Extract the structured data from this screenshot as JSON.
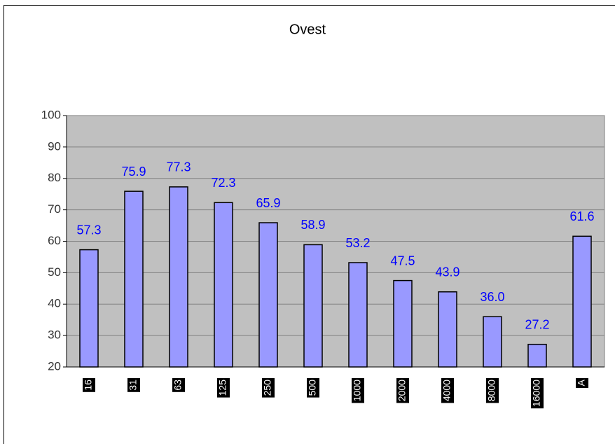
{
  "chart_data": {
    "type": "bar",
    "title": "Ovest",
    "categories": [
      "16",
      "31",
      "63",
      "125",
      "250",
      "500",
      "1000",
      "2000",
      "4000",
      "8000",
      "16000",
      "A"
    ],
    "values": [
      57.3,
      75.9,
      77.3,
      72.3,
      65.9,
      58.9,
      53.2,
      47.5,
      43.9,
      36.0,
      27.2,
      61.6
    ],
    "value_labels": [
      "57.3",
      "75.9",
      "77.3",
      "72.3",
      "65.9",
      "58.9",
      "53.2",
      "47.5",
      "43.9",
      "36.0",
      "27.2",
      "61.6"
    ],
    "color": "#9999ff",
    "ylim": [
      20,
      100
    ],
    "yticks": [
      20,
      30,
      40,
      50,
      60,
      70,
      80,
      90,
      100
    ],
    "grid": true
  }
}
